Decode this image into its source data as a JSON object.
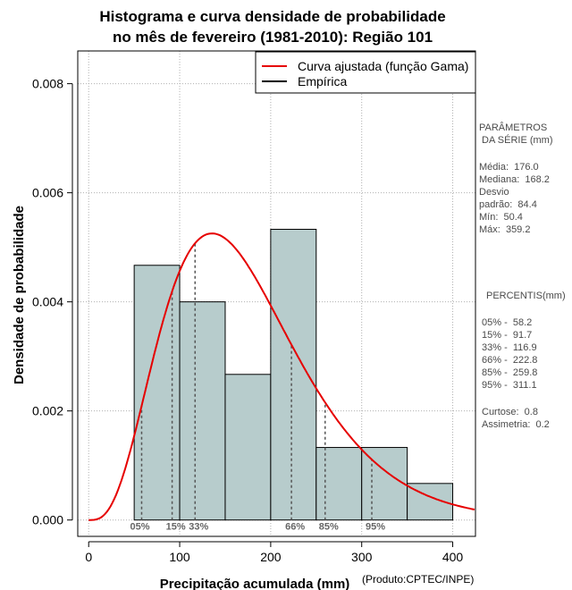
{
  "title_line1": "Histograma e curva densidade de probabilidade",
  "title_line2": "no mês de fevereiro (1981-2010): Região 101",
  "product_label": "(Produto:CPTEC/INPE)",
  "colors": {
    "bars": "#b7cccc",
    "curve": "#e60000",
    "grid": "#b0b0b0",
    "percentile": "#555555",
    "side_text": "#4a4a4a"
  },
  "chart_data": {
    "type": "histogram",
    "xlabel": "Precipitação acumulada (mm)",
    "ylabel": "Densidade de probabilidade",
    "xlim": [
      -12,
      425
    ],
    "ylim": [
      -0.0003,
      0.0086
    ],
    "x_ticks": [
      0,
      100,
      200,
      300,
      400
    ],
    "x_tick_labels": [
      "0",
      "100",
      "200",
      "300",
      "400"
    ],
    "y_ticks": [
      0.0,
      0.002,
      0.004,
      0.006,
      0.008
    ],
    "y_tick_labels": [
      "0.000",
      "0.002",
      "0.004",
      "0.006",
      "0.008"
    ],
    "bins": [
      {
        "start": 50,
        "end": 100,
        "density": 0.00467
      },
      {
        "start": 100,
        "end": 150,
        "density": 0.004
      },
      {
        "start": 150,
        "end": 200,
        "density": 0.00267
      },
      {
        "start": 200,
        "end": 250,
        "density": 0.00533
      },
      {
        "start": 250,
        "end": 300,
        "density": 0.00133
      },
      {
        "start": 300,
        "end": 350,
        "density": 0.00133
      },
      {
        "start": 350,
        "end": 400,
        "density": 0.00067
      }
    ],
    "fitted_curve": {
      "name": "Curva ajustada (função Gama)",
      "mean": 176.0,
      "sd": 84.4
    },
    "percentiles": [
      {
        "label": "05%",
        "value": 58.2
      },
      {
        "label": "15%",
        "value": 91.7
      },
      {
        "label": "33%",
        "value": 116.9
      },
      {
        "label": "66%",
        "value": 222.8
      },
      {
        "label": "85%",
        "value": 259.8
      },
      {
        "label": "95%",
        "value": 311.1
      }
    ],
    "legend": [
      {
        "label": "Curva ajustada (função Gama)",
        "color": "#e60000"
      },
      {
        "label": "Empírica",
        "color": "#000000"
      }
    ]
  },
  "side_panel": {
    "params_title_1": "PARÂMETROS",
    "params_title_2": " DA SÉRIE (mm)",
    "media": "Média:  176.0",
    "mediana": "Mediana:  168.2",
    "desvio_1": "Desvio",
    "desvio_2": "padrão:  84.4",
    "min": "Mín:  50.4",
    "max": "Máx:  359.2",
    "percentis_title": "PERCENTIS(mm)",
    "p05": "05% -  58.2",
    "p15": "15% -  91.7",
    "p33": "33% -  116.9",
    "p66": "66% -  222.8",
    "p85": "85% -  259.8",
    "p95": "95% -  311.1",
    "curtose": "Curtose:  0.8",
    "assimetria": "Assimetria:  0.2"
  }
}
